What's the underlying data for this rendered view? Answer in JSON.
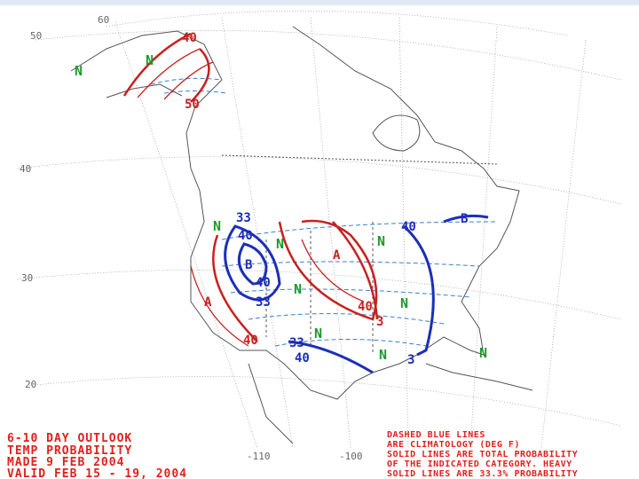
{
  "title": {
    "lines": [
      "6-10 DAY OUTLOOK",
      "TEMP PROBABILITY",
      "MADE  9 FEB 2004",
      "VALID  FEB 15 - 19, 2004"
    ]
  },
  "legend_note": {
    "lines": [
      "DASHED BLUE LINES",
      "ARE CLIMATOLOGY (DEG F)",
      "SOLID LINES ARE TOTAL PROBABILITY",
      "OF THE INDICATED CATEGORY. HEAVY",
      "SOLID LINES ARE 33.3% PROBABILITY"
    ]
  },
  "latitude_labels": [
    "60",
    "50",
    "40",
    "30",
    "20"
  ],
  "longitude_labels": [
    "-110",
    "-100"
  ],
  "map_labels": [
    "40",
    "50",
    "A",
    "A",
    "40",
    "40",
    "3",
    "N",
    "N",
    "N",
    "N",
    "N",
    "N",
    "N",
    "N",
    "N",
    "N",
    "33",
    "40",
    "B",
    "40",
    "33",
    "33",
    "40",
    "B",
    "40",
    "3"
  ]
}
